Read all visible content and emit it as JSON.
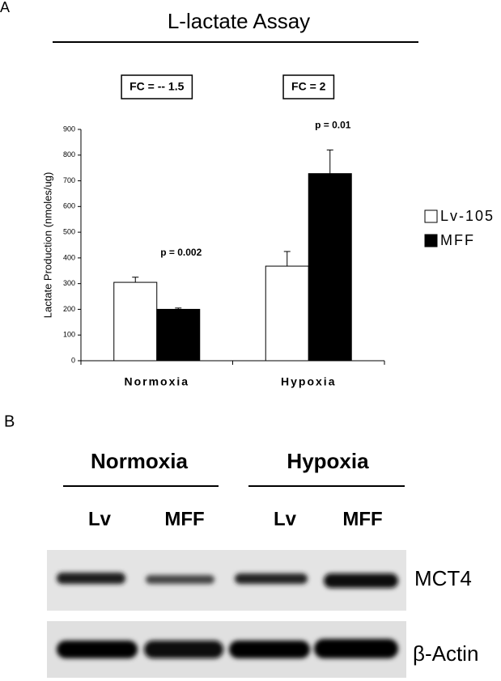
{
  "chart_data": {
    "type": "bar",
    "panel_label": "A",
    "title": "L-lactate Assay",
    "y_label": "Lactate Production (nmoles/ug)",
    "categories": [
      "Normoxia",
      "Hypoxia"
    ],
    "series": [
      {
        "name": "Lv-105",
        "color": "#ffffff",
        "values": [
          305,
          368
        ],
        "errors": [
          20,
          57
        ]
      },
      {
        "name": "MFF",
        "color": "#000000",
        "values": [
          200,
          728
        ],
        "errors": [
          5,
          92
        ]
      }
    ],
    "fold_changes": [
      "FC = -- 1.5",
      "FC = 2"
    ],
    "p_values": [
      "p = 0.002",
      "p = 0.01"
    ],
    "ylim": [
      0,
      900
    ],
    "yticks": [
      0,
      100,
      200,
      300,
      400,
      500,
      600,
      700,
      800,
      900
    ],
    "grid": false,
    "legend": "right"
  },
  "blot": {
    "panel_label": "B",
    "conditions": [
      "Normoxia",
      "Hypoxia"
    ],
    "lanes": [
      "Lv",
      "MFF",
      "Lv",
      "MFF"
    ],
    "proteins": [
      "MCT4",
      "β-Actin"
    ]
  }
}
